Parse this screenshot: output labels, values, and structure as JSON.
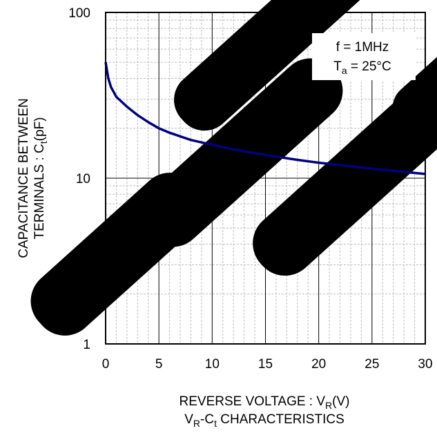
{
  "chart_data": {
    "type": "line",
    "title": "",
    "caption": {
      "main": "V",
      "sub1": "R",
      "mid": "-C",
      "sub2": "t",
      "rest": " CHARACTERISTICS"
    },
    "xlabel": {
      "main": "REVERSE VOLTAGE : V",
      "sub": "R",
      "rest": "(V)"
    },
    "ylabel": {
      "line1": "CAPACITANCE BETWEEN",
      "line2_main": "TERMINALS : C",
      "line2_sub": "t",
      "line2_rest": "(pF)"
    },
    "xlim": [
      0,
      30
    ],
    "ylim": [
      1,
      100
    ],
    "y_scale": "log",
    "x_ticks": [
      0,
      5,
      10,
      15,
      20,
      25,
      30
    ],
    "x_tick_labels": [
      "0",
      "5",
      "10",
      "15",
      "20",
      "25",
      "30"
    ],
    "y_ticks": [
      1,
      10,
      100
    ],
    "y_tick_labels": [
      "1",
      "10",
      "100"
    ],
    "grid": true,
    "annotation": {
      "line1": "f = 1MHz",
      "line2_main": "T",
      "line2_sub": "a",
      "line2_rest": " = 25°C"
    },
    "watermark": "Not Recommended for New Design",
    "series": [
      {
        "color": "#000080",
        "x": [
          0,
          0.25,
          0.5,
          1,
          2,
          3,
          4,
          5,
          6,
          8,
          10,
          12,
          15,
          18,
          20,
          22,
          25,
          28,
          30
        ],
        "y": [
          50,
          40,
          35.5,
          31,
          27,
          24,
          21.8,
          20,
          18.8,
          17,
          15.9,
          14.9,
          13.8,
          12.9,
          12.4,
          12,
          11.4,
          10.9,
          10.6
        ]
      }
    ]
  }
}
